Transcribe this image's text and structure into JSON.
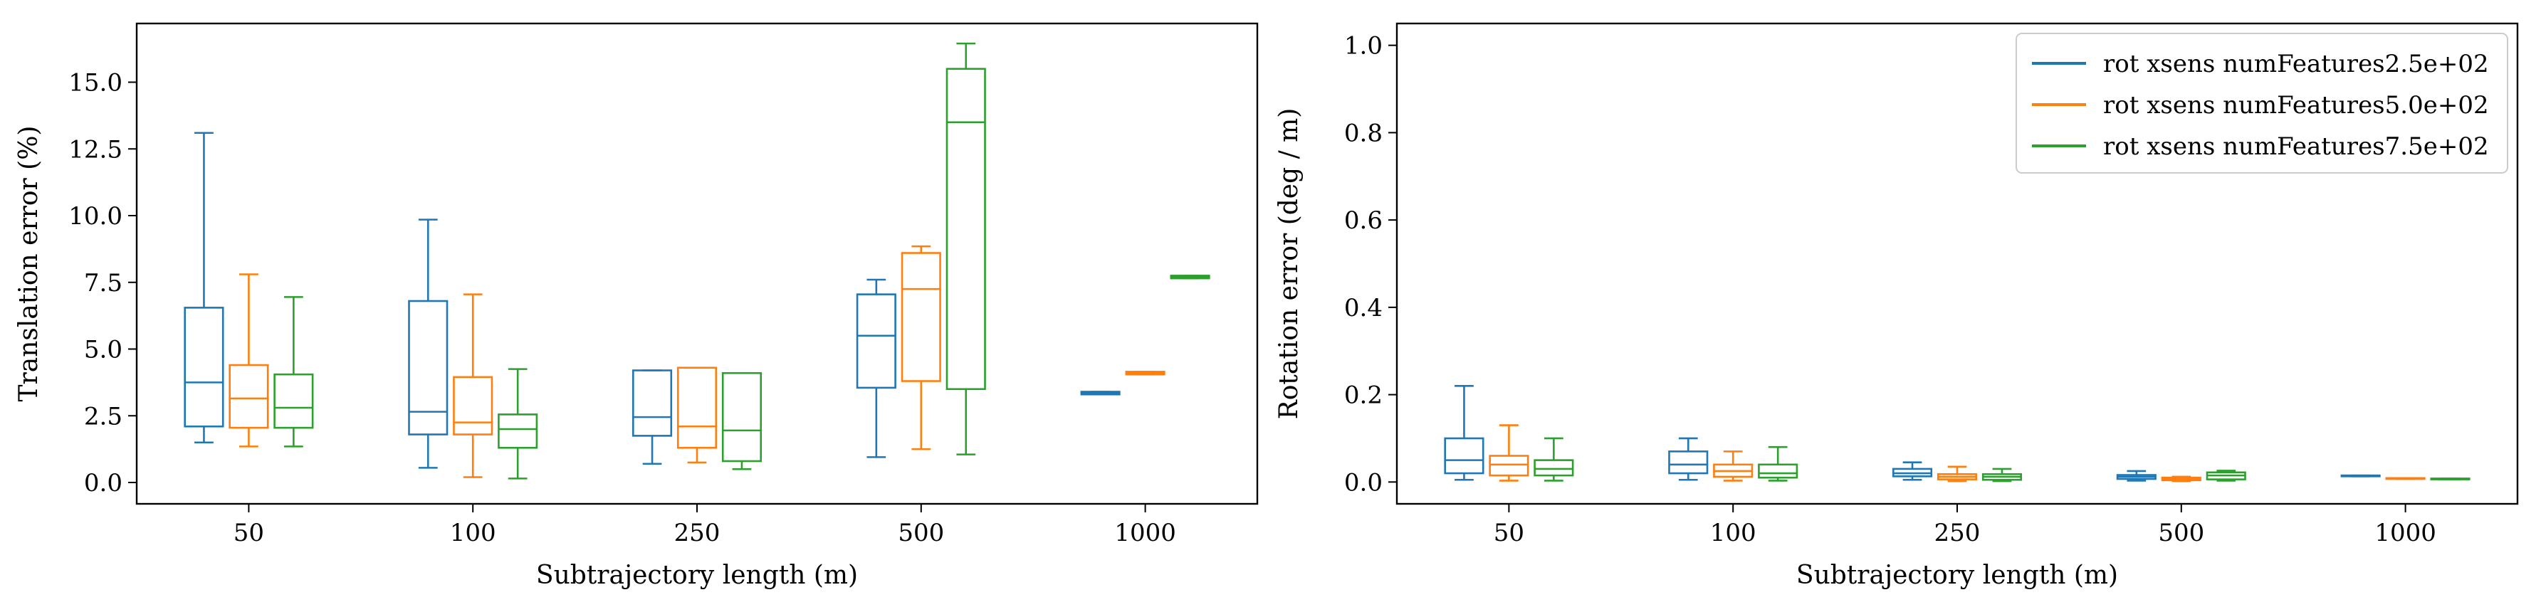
{
  "colors": {
    "series": [
      "#1f77b4",
      "#ff7f0e",
      "#2ca02c"
    ],
    "axes": "#000000",
    "background": "#ffffff"
  },
  "chart_data": [
    {
      "type": "box",
      "xlabel": "Subtrajectory length (m)",
      "ylabel": "Translation error (%)",
      "categories": [
        "50",
        "100",
        "250",
        "500",
        "1000"
      ],
      "ylim": [
        -0.8,
        17.2
      ],
      "yticks": [
        0.0,
        2.5,
        5.0,
        7.5,
        10.0,
        12.5,
        15.0
      ],
      "ytick_labels": [
        "0.0",
        "2.5",
        "5.0",
        "7.5",
        "10.0",
        "12.5",
        "15.0"
      ],
      "legend": false,
      "series": [
        {
          "name": "rot xsens numFeatures2.5e+02",
          "boxes": [
            {
              "whislo": 1.5,
              "q1": 2.1,
              "med": 3.75,
              "q3": 6.55,
              "whishi": 13.1
            },
            {
              "whislo": 0.55,
              "q1": 1.8,
              "med": 2.65,
              "q3": 6.8,
              "whishi": 9.85
            },
            {
              "whislo": 0.7,
              "q1": 1.75,
              "med": 2.45,
              "q3": 4.2,
              "whishi": 4.2
            },
            {
              "whislo": 0.95,
              "q1": 3.55,
              "med": 5.5,
              "q3": 7.05,
              "whishi": 7.6
            },
            {
              "whislo": 3.3,
              "q1": 3.3,
              "med": 3.35,
              "q3": 3.4,
              "whishi": 3.4
            }
          ]
        },
        {
          "name": "rot xsens numFeatures5.0e+02",
          "boxes": [
            {
              "whislo": 1.35,
              "q1": 2.05,
              "med": 3.15,
              "q3": 4.4,
              "whishi": 7.8
            },
            {
              "whislo": 0.2,
              "q1": 1.8,
              "med": 2.25,
              "q3": 3.95,
              "whishi": 7.05
            },
            {
              "whislo": 0.75,
              "q1": 1.3,
              "med": 2.1,
              "q3": 4.3,
              "whishi": 4.3
            },
            {
              "whislo": 1.25,
              "q1": 3.8,
              "med": 7.25,
              "q3": 8.6,
              "whishi": 8.85
            },
            {
              "whislo": 4.05,
              "q1": 4.05,
              "med": 4.1,
              "q3": 4.15,
              "whishi": 4.15
            }
          ]
        },
        {
          "name": "rot xsens numFeatures7.5e+02",
          "boxes": [
            {
              "whislo": 1.35,
              "q1": 2.05,
              "med": 2.8,
              "q3": 4.05,
              "whishi": 6.95
            },
            {
              "whislo": 0.15,
              "q1": 1.3,
              "med": 2.0,
              "q3": 2.55,
              "whishi": 4.25
            },
            {
              "whislo": 0.5,
              "q1": 0.8,
              "med": 1.95,
              "q3": 4.1,
              "whishi": 4.1
            },
            {
              "whislo": 1.05,
              "q1": 3.5,
              "med": 13.5,
              "q3": 15.5,
              "whishi": 16.45
            },
            {
              "whislo": 7.65,
              "q1": 7.65,
              "med": 7.7,
              "q3": 7.75,
              "whishi": 7.75
            }
          ]
        }
      ]
    },
    {
      "type": "box",
      "xlabel": "Subtrajectory length (m)",
      "ylabel": "Rotation error (deg / m)",
      "categories": [
        "50",
        "100",
        "250",
        "500",
        "1000"
      ],
      "ylim": [
        -0.05,
        1.05
      ],
      "yticks": [
        0.0,
        0.2,
        0.4,
        0.6,
        0.8,
        1.0
      ],
      "ytick_labels": [
        "0.0",
        "0.2",
        "0.4",
        "0.6",
        "0.8",
        "1.0"
      ],
      "legend": true,
      "legend_position": "top-right",
      "series": [
        {
          "name": "rot xsens numFeatures2.5e+02",
          "boxes": [
            {
              "whislo": 0.005,
              "q1": 0.02,
              "med": 0.05,
              "q3": 0.1,
              "whishi": 0.22
            },
            {
              "whislo": 0.005,
              "q1": 0.02,
              "med": 0.04,
              "q3": 0.07,
              "whishi": 0.1
            },
            {
              "whislo": 0.005,
              "q1": 0.013,
              "med": 0.02,
              "q3": 0.03,
              "whishi": 0.045
            },
            {
              "whislo": 0.003,
              "q1": 0.007,
              "med": 0.012,
              "q3": 0.016,
              "whishi": 0.025
            },
            {
              "whislo": 0.013,
              "q1": 0.013,
              "med": 0.014,
              "q3": 0.015,
              "whishi": 0.015
            }
          ]
        },
        {
          "name": "rot xsens numFeatures5.0e+02",
          "boxes": [
            {
              "whislo": 0.003,
              "q1": 0.015,
              "med": 0.04,
              "q3": 0.06,
              "whishi": 0.13
            },
            {
              "whislo": 0.003,
              "q1": 0.012,
              "med": 0.025,
              "q3": 0.04,
              "whishi": 0.07
            },
            {
              "whislo": 0.002,
              "q1": 0.006,
              "med": 0.012,
              "q3": 0.018,
              "whishi": 0.035
            },
            {
              "whislo": 0.002,
              "q1": 0.004,
              "med": 0.007,
              "q3": 0.01,
              "whishi": 0.012
            },
            {
              "whislo": 0.007,
              "q1": 0.007,
              "med": 0.008,
              "q3": 0.009,
              "whishi": 0.009
            }
          ]
        },
        {
          "name": "rot xsens numFeatures7.5e+02",
          "boxes": [
            {
              "whislo": 0.003,
              "q1": 0.015,
              "med": 0.03,
              "q3": 0.05,
              "whishi": 0.1
            },
            {
              "whislo": 0.003,
              "q1": 0.01,
              "med": 0.02,
              "q3": 0.04,
              "whishi": 0.08
            },
            {
              "whislo": 0.002,
              "q1": 0.005,
              "med": 0.012,
              "q3": 0.018,
              "whishi": 0.03
            },
            {
              "whislo": 0.003,
              "q1": 0.006,
              "med": 0.015,
              "q3": 0.022,
              "whishi": 0.026
            },
            {
              "whislo": 0.006,
              "q1": 0.006,
              "med": 0.007,
              "q3": 0.008,
              "whishi": 0.008
            }
          ]
        }
      ]
    }
  ]
}
